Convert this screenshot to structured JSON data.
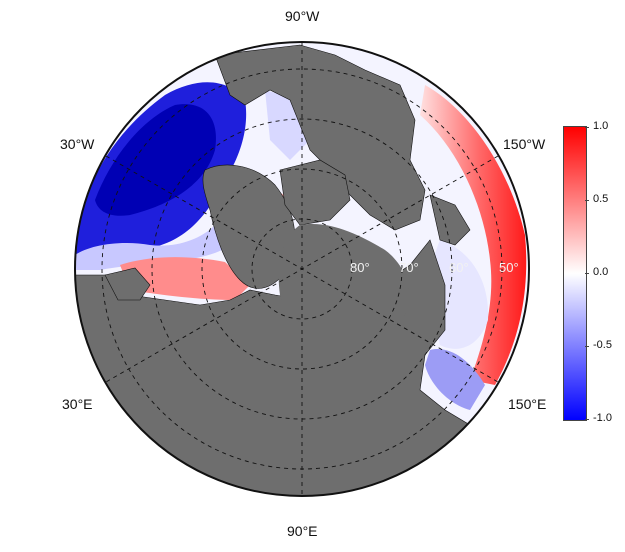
{
  "map": {
    "projection": "north-polar-stereographic",
    "longitude_labels": {
      "top": "90°W",
      "upper_left": "30°W",
      "upper_right": "150°W",
      "lower_left": "30°E",
      "lower_right": "150°E",
      "bottom": "90°E"
    },
    "latitude_labels": [
      "80°",
      "70°",
      "60°",
      "50°"
    ],
    "colors": {
      "land": "#6e6e6e",
      "positive": "#ff0000",
      "neutral": "#ffffff",
      "negative": "#0000ff",
      "grid": "#111111"
    }
  },
  "colorbar": {
    "ticks": [
      "1.0",
      "0.5",
      "0.0",
      "-0.5",
      "-1.0"
    ],
    "range": [
      -1.0,
      1.0
    ]
  }
}
